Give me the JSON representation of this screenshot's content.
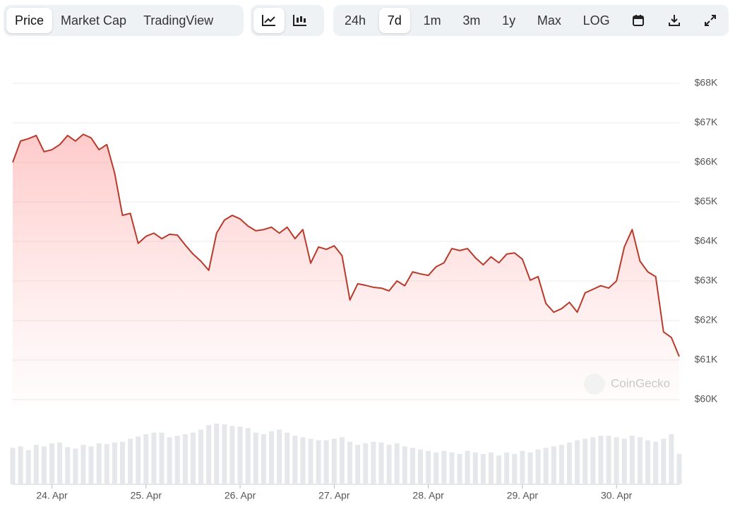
{
  "toolbar": {
    "metric": [
      "Price",
      "Market Cap",
      "TradingView"
    ],
    "range": [
      "24h",
      "7d",
      "1m",
      "3m",
      "1y",
      "Max",
      "LOG"
    ]
  },
  "chart_data": {
    "type": "line",
    "categories": [
      null,
      null,
      null,
      null,
      null,
      "24. Apr",
      null,
      null,
      null,
      null,
      null,
      null,
      null,
      null,
      null,
      null,
      null,
      "25. Apr",
      null,
      null,
      null,
      null,
      null,
      null,
      null,
      null,
      null,
      null,
      null,
      "26. Apr",
      null,
      null,
      null,
      null,
      null,
      null,
      null,
      null,
      null,
      null,
      null,
      "27. Apr",
      null,
      null,
      null,
      null,
      null,
      null,
      null,
      null,
      null,
      null,
      null,
      "28. Apr",
      null,
      null,
      null,
      null,
      null,
      null,
      null,
      null,
      null,
      null,
      null,
      "29. Apr",
      null,
      null,
      null,
      null,
      null,
      null,
      null,
      null,
      null,
      null,
      null,
      "30. Apr",
      null,
      null,
      null,
      null,
      null,
      null,
      null,
      null
    ],
    "series": [
      {
        "name": "Price",
        "color": "#b83a2b",
        "values": [
          66000,
          66540,
          66600,
          66680,
          66270,
          66320,
          66450,
          66680,
          66540,
          66710,
          66620,
          66320,
          66450,
          65730,
          64660,
          64710,
          63950,
          64130,
          64210,
          64070,
          64180,
          64160,
          63910,
          63680,
          63500,
          63270,
          64210,
          64540,
          64660,
          64570,
          64390,
          64270,
          64300,
          64360,
          64210,
          64360,
          64070,
          64300,
          63450,
          63860,
          63800,
          63890,
          63640,
          62520,
          62930,
          62890,
          62840,
          62820,
          62750,
          63000,
          62880,
          63230,
          63180,
          63140,
          63360,
          63460,
          63820,
          63770,
          63820,
          63590,
          63410,
          63610,
          63460,
          63680,
          63710,
          63550,
          63020,
          63110,
          62430,
          62210,
          62300,
          62460,
          62210,
          62700,
          62790,
          62880,
          62820,
          63000,
          63860,
          64300,
          63500,
          63230,
          63110,
          61710,
          61570,
          61090
        ]
      }
    ],
    "volume": {
      "color": "#e6e7eb",
      "values": [
        48,
        50,
        45,
        52,
        50,
        54,
        55,
        49,
        47,
        52,
        50,
        54,
        53,
        55,
        56,
        60,
        63,
        66,
        68,
        68,
        62,
        64,
        66,
        68,
        72,
        78,
        80,
        79,
        77,
        76,
        74,
        68,
        66,
        70,
        72,
        68,
        64,
        62,
        60,
        58,
        58,
        60,
        62,
        56,
        52,
        54,
        56,
        55,
        52,
        54,
        50,
        48,
        46,
        44,
        42,
        44,
        42,
        40,
        44,
        42,
        40,
        42,
        38,
        42,
        40,
        44,
        42,
        46,
        48,
        50,
        52,
        55,
        58,
        60,
        62,
        64,
        64,
        62,
        60,
        64,
        62,
        58,
        56,
        60,
        66,
        40
      ]
    },
    "ylim": [
      60000,
      68000
    ],
    "yticks": [
      {
        "value": 60000,
        "label": "$60K"
      },
      {
        "value": 61000,
        "label": "$61K"
      },
      {
        "value": 62000,
        "label": "$62K"
      },
      {
        "value": 63000,
        "label": "$63K"
      },
      {
        "value": 64000,
        "label": "$64K"
      },
      {
        "value": 65000,
        "label": "$65K"
      },
      {
        "value": 66000,
        "label": "$66K"
      },
      {
        "value": 67000,
        "label": "$67K"
      },
      {
        "value": 68000,
        "label": "$68K"
      }
    ],
    "grid": true,
    "watermark": "CoinGecko"
  }
}
